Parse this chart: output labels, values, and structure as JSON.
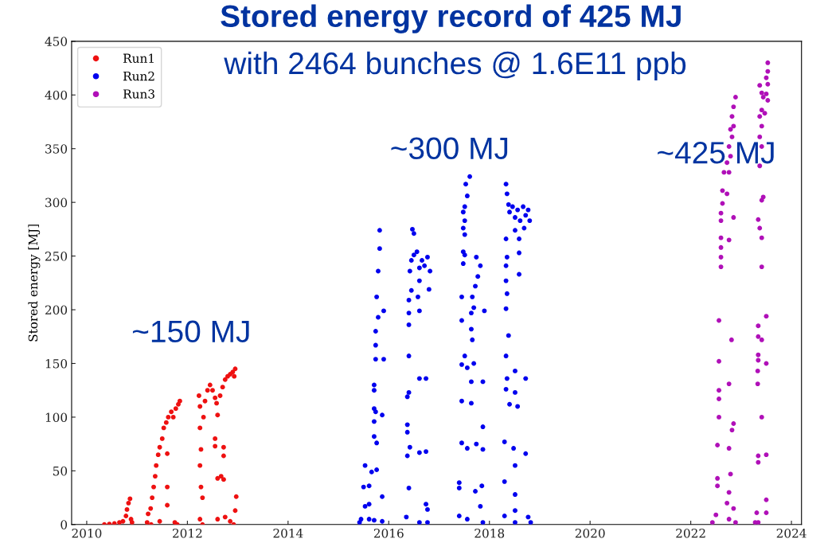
{
  "chart_data": {
    "type": "scatter",
    "title": "Stored energy record of 425 MJ",
    "subtitle": "with 2464 bunches @ 1.6E11 ppb",
    "ylabel": "Stored energy [MJ]",
    "xlim": [
      2009.7,
      2024.2
    ],
    "xticks": [
      2010,
      2012,
      2014,
      2016,
      2018,
      2020,
      2022,
      2024
    ],
    "ylim": [
      0,
      450
    ],
    "yticks": [
      0,
      50,
      100,
      150,
      200,
      250,
      300,
      350,
      400,
      450
    ],
    "grid": false,
    "legend": "top left",
    "marker": "circle",
    "annotations": [
      "~150 MJ",
      "~300 MJ",
      "~425 MJ"
    ],
    "series": [
      {
        "name": "Run1",
        "color": "#ee1111",
        "x": [
          2010.35,
          2010.45,
          2010.55,
          2010.65,
          2010.72,
          2010.78,
          2010.8,
          2010.83,
          2010.86,
          2010.88,
          2010.9,
          2011.2,
          2011.22,
          2011.27,
          2011.3,
          2011.33,
          2011.36,
          2011.38,
          2011.42,
          2011.45,
          2011.5,
          2011.53,
          2011.58,
          2011.62,
          2011.68,
          2011.72,
          2011.77,
          2011.82,
          2011.85,
          2011.6,
          2011.6,
          2011.6,
          2011.75,
          2011.8,
          2011.45,
          2011.28,
          2012.23,
          2012.25,
          2012.25,
          2012.27,
          2012.25,
          2012.27,
          2012.3,
          2012.25,
          2012.3,
          2012.32,
          2012.35,
          2012.4,
          2012.45,
          2012.5,
          2012.55,
          2012.58,
          2012.55,
          2012.55,
          2012.6,
          2012.65,
          2012.7,
          2012.75,
          2012.8,
          2012.85,
          2012.9,
          2012.93,
          2012.95,
          2012.72,
          2012.72,
          2012.6,
          2012.67,
          2012.72,
          2012.6,
          2012.75,
          2012.85,
          2012.97,
          2012.95,
          2012.92
        ],
        "values": [
          0,
          0.5,
          1,
          2,
          3,
          8,
          14,
          20,
          24,
          5,
          2,
          2,
          10,
          15,
          25,
          35,
          45,
          55,
          65,
          72,
          80,
          90,
          95,
          100,
          105,
          100,
          108,
          112,
          115,
          66,
          35,
          18,
          2,
          0,
          3,
          0,
          120,
          110,
          90,
          70,
          55,
          35,
          25,
          5,
          0,
          100,
          115,
          125,
          130,
          125,
          118,
          113,
          80,
          73,
          102,
          120,
          128,
          135,
          138,
          140,
          142,
          138,
          145,
          72,
          64,
          43,
          45,
          42,
          5,
          7,
          3,
          26,
          13,
          0
        ]
      },
      {
        "name": "Run2",
        "color": "#0000ee",
        "x": [
          2015.53,
          2015.66,
          2015.5,
          2015.61,
          2015.53,
          2015.61,
          2015.45,
          2015.61,
          2015.71,
          2015.76,
          2015.71,
          2015.76,
          2015.71,
          2015.71,
          2015.74,
          2015.87,
          2015.71,
          2015.71,
          2015.74,
          2015.74,
          2015.74,
          2015.9,
          2015.79,
          2015.76,
          2015.9,
          2015.79,
          2015.82,
          2015.82,
          2015.87,
          2015.87,
          2015.42,
          2016.4,
          2016.35,
          2016.37,
          2016.37,
          2016.37,
          2016.42,
          2016.61,
          2016.74,
          2016.4,
          2016.37,
          2016.61,
          2016.74,
          2016.4,
          2016.4,
          2016.4,
          2016.61,
          2016.4,
          2016.58,
          2016.8,
          2016.45,
          2016.42,
          2016.5,
          2016.5,
          2016.47,
          2016.45,
          2016.56,
          2016.66,
          2016.77,
          2016.61,
          2016.71,
          2016.82,
          2016.61,
          2016.74,
          2016.77,
          2016.61,
          2016.77,
          2017.61,
          2017.53,
          2017.56,
          2017.51,
          2017.48,
          2017.51,
          2017.48,
          2017.51,
          2017.48,
          2017.51,
          2017.48,
          2017.45,
          2017.45,
          2017.51,
          2017.45,
          2017.56,
          2017.69,
          2017.64,
          2017.45,
          2017.64,
          2017.45,
          2017.56,
          2017.4,
          2017.4,
          2017.4,
          2017.56,
          2017.74,
          2017.82,
          2017.77,
          2017.72,
          2017.66,
          2017.69,
          2017.64,
          2017.64,
          2017.66,
          2017.74,
          2017.87,
          2017.87,
          2017.85,
          2017.9,
          2017.87,
          2017.72,
          2017.82,
          2017.87,
          2018.33,
          2018.35,
          2018.38,
          2018.4,
          2018.46,
          2018.51,
          2018.56,
          2018.61,
          2018.67,
          2018.72,
          2018.77,
          2018.8,
          2018.69,
          2018.59,
          2018.33,
          2018.51,
          2018.35,
          2018.33,
          2018.59,
          2018.35,
          2018.33,
          2018.59,
          2018.33,
          2018.38,
          2018.33,
          2018.51,
          2018.35,
          2018.72,
          2018.33,
          2018.51,
          2018.4,
          2018.56,
          2018.3,
          2018.48,
          2018.51,
          2018.72,
          2018.3,
          2018.51,
          2018.51,
          2018.3,
          2018.77,
          2018.51,
          2018.82
        ],
        "values": [
          55,
          49,
          35,
          36,
          17,
          19,
          5,
          5,
          4,
          51,
          82,
          76,
          96,
          108,
          105,
          102,
          125,
          130,
          154,
          167,
          180,
          154,
          193,
          212,
          199,
          236,
          257,
          274,
          26,
          3,
          2,
          34,
          7,
          93,
          86,
          64,
          72,
          67,
          68,
          123,
          119,
          136,
          136,
          157,
          186,
          197,
          199,
          209,
          212,
          219,
          218,
          236,
          251,
          271,
          275,
          246,
          254,
          246,
          249,
          239,
          241,
          236,
          227,
          19,
          14,
          2,
          2,
          324,
          317,
          306,
          296,
          291,
          283,
          276,
          270,
          254,
          251,
          243,
          212,
          190,
          157,
          149,
          146,
          150,
          133,
          115,
          113,
          76,
          71,
          39,
          34,
          8,
          5,
          249,
          241,
          231,
          222,
          212,
          202,
          197,
          182,
          172,
          75,
          91,
          70,
          36,
          199,
          133,
          31,
          17,
          2,
          317,
          308,
          298,
          291,
          296,
          286,
          293,
          283,
          296,
          288,
          293,
          283,
          276,
          266,
          266,
          274,
          249,
          241,
          253,
          215,
          227,
          233,
          201,
          176,
          157,
          143,
          136,
          136,
          126,
          123,
          112,
          110,
          77,
          71,
          55,
          66,
          40,
          28,
          13,
          8,
          7,
          2,
          2
        ]
      },
      {
        "name": "Run3",
        "color": "#b010b8",
        "x": [
          2022.89,
          2022.85,
          2022.82,
          2022.85,
          2022.79,
          2022.82,
          2022.76,
          2022.79,
          2022.72,
          2022.66,
          2022.76,
          2022.63,
          2022.72,
          2022.63,
          2022.6,
          2022.85,
          2022.6,
          2022.6,
          2022.76,
          2022.6,
          2022.6,
          2022.6,
          2022.56,
          2022.56,
          2022.81,
          2022.56,
          2022.56,
          2022.76,
          2022.56,
          2022.85,
          2022.82,
          2022.53,
          2022.76,
          2022.53,
          2022.53,
          2022.79,
          2022.76,
          2022.72,
          2022.85,
          2022.5,
          2022.76,
          2022.89,
          2022.43,
          2023.53,
          2023.53,
          2023.5,
          2023.53,
          2023.37,
          2023.41,
          2023.5,
          2023.44,
          2023.53,
          2023.41,
          2023.47,
          2023.37,
          2023.41,
          2023.37,
          2023.41,
          2023.37,
          2023.44,
          2023.41,
          2023.34,
          2023.37,
          2023.41,
          2023.41,
          2023.5,
          2023.34,
          2023.34,
          2023.41,
          2023.34,
          2023.34,
          2023.5,
          2023.33,
          2023.33,
          2023.41,
          2023.34,
          2023.34,
          2023.5,
          2023.5,
          2023.5,
          2023.31,
          2023.34,
          2023.28
        ],
        "values": [
          398,
          389,
          380,
          371,
          368,
          361,
          352,
          343,
          337,
          328,
          328,
          311,
          308,
          299,
          290,
          286,
          283,
          267,
          265,
          258,
          249,
          240,
          190,
          152,
          172,
          125,
          117,
          131,
          100,
          94,
          88,
          74,
          71,
          43,
          36,
          47,
          30,
          20,
          15,
          9,
          5,
          2,
          2,
          430,
          422,
          416,
          410,
          409,
          402,
          401,
          398,
          395,
          386,
          383,
          380,
          371,
          361,
          352,
          334,
          305,
          302,
          284,
          276,
          267,
          240,
          194,
          185,
          175,
          172,
          158,
          153,
          150,
          143,
          131,
          100,
          64,
          58,
          65,
          23,
          11,
          11,
          2,
          2
        ]
      }
    ]
  }
}
